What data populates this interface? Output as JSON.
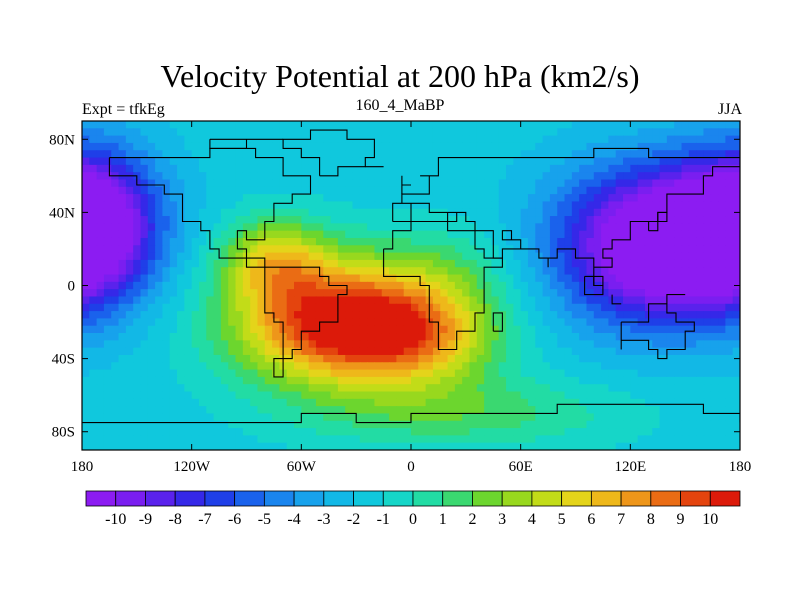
{
  "header": {
    "title": "Velocity Potential at 200 hPa (km2/s)",
    "left_label": "Expt = tfkEg",
    "center_label": "160_4_MaBP",
    "right_label": "JJA"
  },
  "chart_data": {
    "type": "heatmap",
    "title": "Velocity Potential at 200 hPa (km2/s)",
    "xlabel": "",
    "ylabel": "",
    "x_ticks": [
      "180",
      "120W",
      "60W",
      "0",
      "60E",
      "120E",
      "180"
    ],
    "x_tick_values": [
      -180,
      -120,
      -60,
      0,
      60,
      120,
      180
    ],
    "y_ticks": [
      "80N",
      "40N",
      "0",
      "40S",
      "80S"
    ],
    "y_tick_values": [
      80,
      40,
      0,
      -40,
      -80
    ],
    "xlim": [
      -180,
      180
    ],
    "ylim": [
      -90,
      90
    ],
    "colorbar": {
      "labels": [
        "-10",
        "-9",
        "-8",
        "-7",
        "-6",
        "-5",
        "-4",
        "-3",
        "-2",
        "-1",
        "0",
        "1",
        "2",
        "3",
        "4",
        "5",
        "6",
        "7",
        "8",
        "9",
        "10"
      ],
      "levels": [
        -10,
        -9,
        -8,
        -7,
        -6,
        -5,
        -4,
        -3,
        -2,
        -1,
        0,
        1,
        2,
        3,
        4,
        5,
        6,
        7,
        8,
        9,
        10
      ],
      "colors": [
        "#8c1cf2",
        "#7a1ef0",
        "#5a22ec",
        "#3528e8",
        "#1f3fe8",
        "#1a62ec",
        "#1a85ee",
        "#17a2ec",
        "#12b8e6",
        "#10c8dd",
        "#16d6c8",
        "#22dca4",
        "#3ad870",
        "#6cd62e",
        "#98d81e",
        "#c2dc18",
        "#e4d41a",
        "#eeb81a",
        "#ee961a",
        "#ea6c14",
        "#e4440e",
        "#dc1a0a"
      ]
    },
    "centers": [
      {
        "name": "max",
        "lon": -45,
        "lat": -20,
        "value": 10
      },
      {
        "name": "min",
        "lon": 135,
        "lat": 20,
        "value": -10
      },
      {
        "name": "min",
        "lon": -170,
        "lat": 35,
        "value": -10
      }
    ]
  }
}
